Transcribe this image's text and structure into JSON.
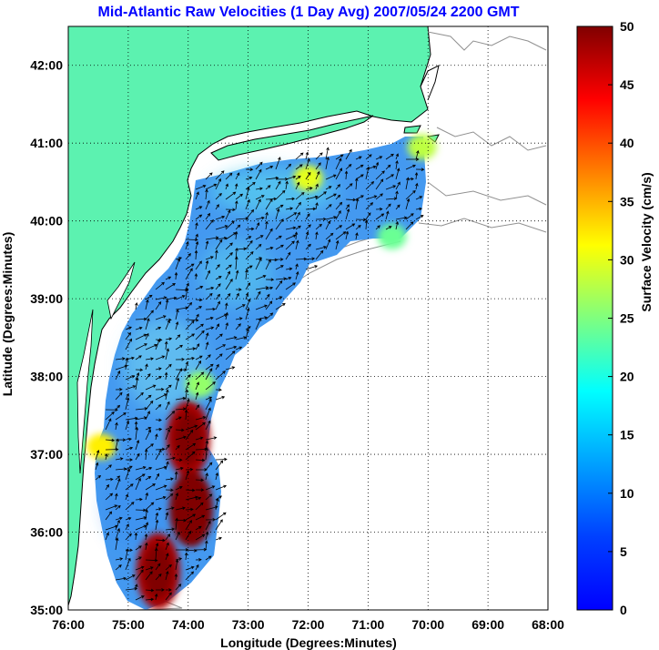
{
  "title": "Mid-Atlantic Raw Velocities (1 Day Avg) 2007/05/24 2200 GMT",
  "map": {
    "x_axis_label": "Longitude (Degrees:Minutes)",
    "y_axis_label": "Latitude (Degrees:Minutes)",
    "x_ticks": [
      "76:00",
      "75:00",
      "74:00",
      "73:00",
      "72:00",
      "71:00",
      "70:00",
      "69:00",
      "68:00"
    ],
    "y_ticks": [
      "35:00",
      "36:00",
      "37:00",
      "38:00",
      "39:00",
      "40:00",
      "41:00",
      "42:00"
    ],
    "lon_range": [
      -76,
      -68
    ],
    "lat_range": [
      35,
      42.5
    ],
    "land_color": "#5cf2b0",
    "coastline_color": "#000000",
    "bathymetry_color": "#909090",
    "grid": true,
    "hotspots": [
      {
        "lon": -72.0,
        "lat": 40.55,
        "speed": 30
      },
      {
        "lon": -70.1,
        "lat": 40.95,
        "speed": 28
      },
      {
        "lon": -70.6,
        "lat": 39.8,
        "speed": 24
      },
      {
        "lon": -73.8,
        "lat": 37.9,
        "speed": 26
      },
      {
        "lon": -74.0,
        "lat": 37.2,
        "speed": 48
      },
      {
        "lon": -73.95,
        "lat": 36.3,
        "speed": 50
      },
      {
        "lon": -74.5,
        "lat": 35.5,
        "speed": 48
      },
      {
        "lon": -75.45,
        "lat": 37.1,
        "speed": 32
      }
    ]
  },
  "colorbar": {
    "label": "Surface Velocity (cm/s)",
    "min": 0,
    "max": 50,
    "ticks": [
      "0",
      "5",
      "10",
      "15",
      "20",
      "25",
      "30",
      "35",
      "40",
      "45",
      "50"
    ],
    "colormap": "jet"
  }
}
